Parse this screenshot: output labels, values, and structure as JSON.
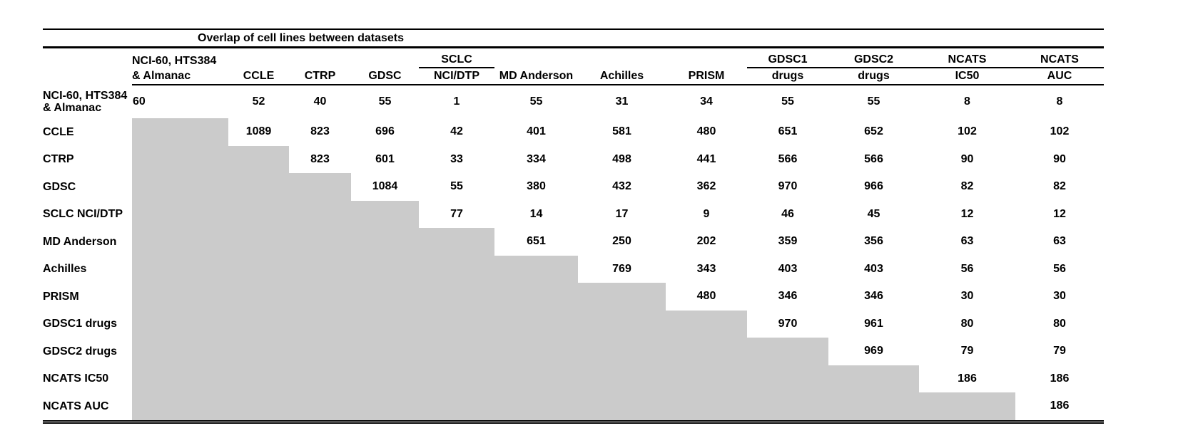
{
  "title": "Overlap of cell lines between datasets",
  "table": {
    "shaded_color": "#cbcbcb",
    "columns": [
      {
        "top": "NCI-60, HTS384",
        "bottom": "& Almanac",
        "underline": false
      },
      {
        "top": "",
        "bottom": "CCLE",
        "underline": false
      },
      {
        "top": "",
        "bottom": "CTRP",
        "underline": false
      },
      {
        "top": "",
        "bottom": "GDSC",
        "underline": false
      },
      {
        "top": "SCLC",
        "bottom": "NCI/DTP",
        "underline": true
      },
      {
        "top": "",
        "bottom": "MD Anderson",
        "underline": false
      },
      {
        "top": "",
        "bottom": "Achilles",
        "underline": false
      },
      {
        "top": "",
        "bottom": "PRISM",
        "underline": false
      },
      {
        "top": "GDSC1",
        "bottom": "drugs",
        "underline": true
      },
      {
        "top": "GDSC2",
        "bottom": "drugs",
        "underline": true
      },
      {
        "top": "NCATS",
        "bottom": "IC50",
        "underline": true
      },
      {
        "top": "NCATS",
        "bottom": "AUC",
        "underline": true
      }
    ],
    "rows": [
      {
        "label": "NCI-60, HTS384\n& Almanac",
        "values": [
          60,
          52,
          40,
          55,
          1,
          55,
          31,
          34,
          55,
          55,
          8,
          8
        ]
      },
      {
        "label": "CCLE",
        "values": [
          1089,
          823,
          696,
          42,
          401,
          581,
          480,
          651,
          652,
          102,
          102
        ]
      },
      {
        "label": "CTRP",
        "values": [
          823,
          601,
          33,
          334,
          498,
          441,
          566,
          566,
          90,
          90
        ]
      },
      {
        "label": "GDSC",
        "values": [
          1084,
          55,
          380,
          432,
          362,
          970,
          966,
          82,
          82
        ]
      },
      {
        "label": "SCLC NCI/DTP",
        "values": [
          77,
          14,
          17,
          9,
          46,
          45,
          12,
          12
        ]
      },
      {
        "label": "MD Anderson",
        "values": [
          651,
          250,
          202,
          359,
          356,
          63,
          63
        ]
      },
      {
        "label": "Achilles",
        "values": [
          769,
          343,
          403,
          403,
          56,
          56
        ]
      },
      {
        "label": "PRISM",
        "values": [
          480,
          346,
          346,
          30,
          30
        ]
      },
      {
        "label": "GDSC1 drugs",
        "values": [
          970,
          961,
          80,
          80
        ]
      },
      {
        "label": "GDSC2 drugs",
        "values": [
          969,
          79,
          79
        ]
      },
      {
        "label": "NCATS IC50",
        "values": [
          186,
          186
        ]
      },
      {
        "label": "NCATS AUC",
        "values": [
          186
        ]
      }
    ]
  }
}
